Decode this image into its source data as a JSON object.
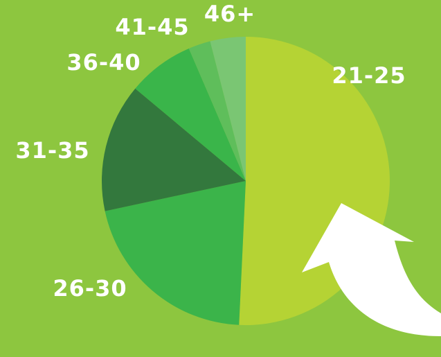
{
  "chart_data": {
    "type": "pie",
    "title": "",
    "categories": [
      "21-25",
      "26-30",
      "31-35",
      "36-40",
      "41-45",
      "46+"
    ],
    "values": [
      51,
      21,
      14.5,
      7.5,
      2.5,
      4
    ],
    "colors": [
      "#b5d334",
      "#3bb44a",
      "#33783d",
      "#3ab54a",
      "#5fbe5b",
      "#7ac673"
    ],
    "start_angle_deg": 0,
    "direction": "clockwise",
    "legend": "none",
    "data_labels": "category names outside slices"
  },
  "background": "#8dc63f",
  "arrow": {
    "color": "#ffffff",
    "icon": "curved-arrow-icon"
  }
}
